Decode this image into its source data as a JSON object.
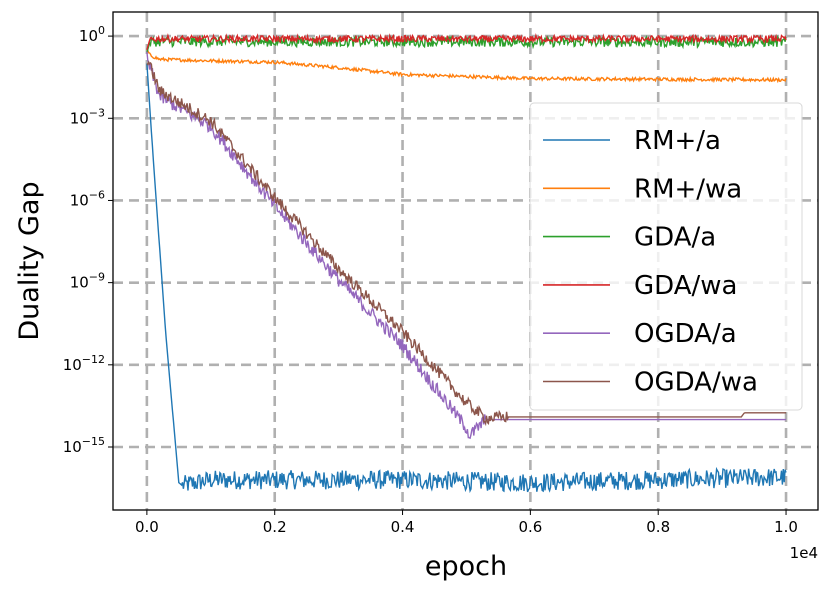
{
  "chart_data": {
    "type": "line",
    "title": "",
    "xlabel": "epoch",
    "ylabel": "Duality Gap",
    "x_offset_label": "1e4",
    "xscale": "linear",
    "yscale": "log",
    "xlim": [
      -0.053,
      1.05
    ],
    "ylim_log10": [
      -17.3,
      0.88
    ],
    "grid": true,
    "legend_position": "right",
    "xticks": [
      {
        "value": 0.0,
        "label": "0.0"
      },
      {
        "value": 0.2,
        "label": "0.2"
      },
      {
        "value": 0.4,
        "label": "0.4"
      },
      {
        "value": 0.6,
        "label": "0.6"
      },
      {
        "value": 0.8,
        "label": "0.8"
      },
      {
        "value": 1.0,
        "label": "1.0"
      }
    ],
    "yticks": [
      {
        "log10": 0,
        "base": "10",
        "exp": "0"
      },
      {
        "log10": -3,
        "base": "10",
        "exp": "−3"
      },
      {
        "log10": -6,
        "base": "10",
        "exp": "−6"
      },
      {
        "log10": -9,
        "base": "10",
        "exp": "−9"
      },
      {
        "log10": -12,
        "base": "10",
        "exp": "−12"
      },
      {
        "log10": -15,
        "base": "10",
        "exp": "−15"
      }
    ],
    "series": [
      {
        "name": "RM+/a",
        "color": "#1f77b4",
        "noise": 0.35,
        "noise_start": 0.055,
        "points_x_1e4_log10y": [
          [
            0,
            -1.0
          ],
          [
            0.01,
            -4.5
          ],
          [
            0.03,
            -11
          ],
          [
            0.05,
            -16.3
          ],
          [
            0.055,
            -16.4
          ],
          [
            0.1,
            -16.2
          ],
          [
            0.4,
            -16.2
          ],
          [
            0.6,
            -16.3
          ],
          [
            1.0,
            -16.1
          ]
        ]
      },
      {
        "name": "RM+/wa",
        "color": "#ff7f0e",
        "noise": 0.06,
        "noise_start": 0.0,
        "points_x_1e4_log10y": [
          [
            0,
            -0.5
          ],
          [
            0.005,
            -0.7
          ],
          [
            0.02,
            -0.85
          ],
          [
            0.1,
            -0.9
          ],
          [
            0.2,
            -0.95
          ],
          [
            0.3,
            -1.15
          ],
          [
            0.4,
            -1.4
          ],
          [
            0.6,
            -1.55
          ],
          [
            1.0,
            -1.6
          ]
        ]
      },
      {
        "name": "GDA/a",
        "color": "#2ca02c",
        "noise": 0.18,
        "noise_start": 0.005,
        "points_x_1e4_log10y": [
          [
            0,
            -0.6
          ],
          [
            0.005,
            -0.2
          ],
          [
            1.0,
            -0.22
          ]
        ]
      },
      {
        "name": "GDA/wa",
        "color": "#d62728",
        "noise": 0.12,
        "noise_start": 0.005,
        "points_x_1e4_log10y": [
          [
            0,
            -0.5
          ],
          [
            0.005,
            -0.1
          ],
          [
            1.0,
            -0.1
          ]
        ]
      },
      {
        "name": "OGDA/a",
        "color": "#9467bd",
        "noise": 0.25,
        "noise_start": 0.0,
        "noise_end": 0.53,
        "points_x_1e4_log10y": [
          [
            0,
            -0.8
          ],
          [
            0.02,
            -2.2
          ],
          [
            0.1,
            -3.3
          ],
          [
            0.2,
            -6.2
          ],
          [
            0.3,
            -8.9
          ],
          [
            0.4,
            -11.3
          ],
          [
            0.5,
            -14.3
          ],
          [
            0.505,
            -14.6
          ],
          [
            0.53,
            -14.0
          ],
          [
            1.0,
            -14.0
          ]
        ]
      },
      {
        "name": "OGDA/wa",
        "color": "#8c564b",
        "noise": 0.22,
        "noise_start": 0.0,
        "noise_end": 0.565,
        "points_x_1e4_log10y": [
          [
            0,
            -0.8
          ],
          [
            0.02,
            -2.0
          ],
          [
            0.1,
            -3.1
          ],
          [
            0.2,
            -5.9
          ],
          [
            0.3,
            -8.5
          ],
          [
            0.4,
            -10.8
          ],
          [
            0.5,
            -13.4
          ],
          [
            0.53,
            -13.95
          ],
          [
            0.565,
            -13.9
          ],
          [
            0.93,
            -13.9
          ],
          [
            0.935,
            -13.75
          ],
          [
            1.0,
            -13.75
          ]
        ]
      }
    ]
  }
}
